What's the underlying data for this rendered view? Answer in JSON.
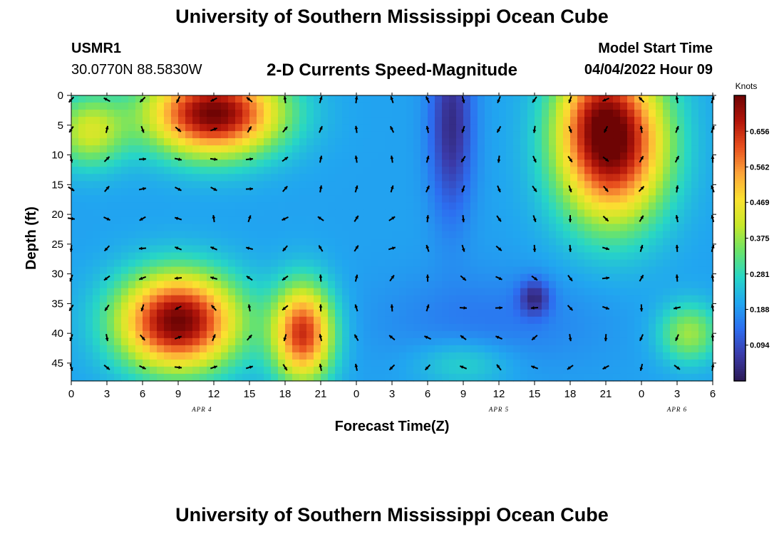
{
  "header": {
    "title": "University of Southern Mississippi Ocean Cube",
    "station_id": "USMR1",
    "coordinates": "30.0770N  88.5830W",
    "plot_title": "2-D Currents Speed-Magnitude",
    "model_start_label": "Model Start Time",
    "model_start_value": "04/04/2022 Hour 09"
  },
  "footer": {
    "title": "University of Southern Mississippi Ocean Cube"
  },
  "chart_data": {
    "type": "heatmap",
    "title": "2-D Currents Speed-Magnitude",
    "xlabel": "Forecast Time(Z)",
    "ylabel": "Depth (ft)",
    "x_ticks": [
      "0",
      "3",
      "6",
      "9",
      "12",
      "15",
      "18",
      "21",
      "0",
      "3",
      "6",
      "9",
      "12",
      "15",
      "18",
      "21",
      "0",
      "3",
      "6"
    ],
    "x_range_hours": [
      0,
      54
    ],
    "date_labels": [
      {
        "label": "APR 4",
        "hour": 11
      },
      {
        "label": "APR 5",
        "hour": 36
      },
      {
        "label": "APR 6",
        "hour": 51
      }
    ],
    "y_ticks": [
      "0",
      "5",
      "10",
      "15",
      "20",
      "25",
      "30",
      "35",
      "40",
      "45"
    ],
    "y_range_ft": [
      0,
      48
    ],
    "colorbar": {
      "title": "Knots",
      "range": [
        0.0,
        0.75
      ],
      "ticks": [
        "0.656",
        "0.562",
        "0.469",
        "0.375",
        "0.281",
        "0.188",
        "0.094"
      ],
      "tick_values": [
        0.656,
        0.562,
        0.469,
        0.375,
        0.281,
        0.188,
        0.094
      ],
      "colors": [
        "#2b1a55",
        "#3b3aa8",
        "#2d6df0",
        "#21a6f0",
        "#27d6c6",
        "#6ae36a",
        "#c7e829",
        "#fbe130",
        "#fca43a",
        "#e8501e",
        "#b3150a",
        "#6e0404"
      ]
    },
    "speed_blobs": [
      {
        "t": 12,
        "d": 3,
        "st": 5.5,
        "sd": 7,
        "amp": 0.55,
        "label": "high-speed region"
      },
      {
        "t": 9,
        "d": 38,
        "st": 5,
        "sd": 8,
        "amp": 0.55,
        "label": "high-speed region"
      },
      {
        "t": 19.5,
        "d": 40,
        "st": 2.5,
        "sd": 8,
        "amp": 0.45,
        "label": "high-speed region"
      },
      {
        "t": 45.5,
        "d": 8,
        "st": 4.5,
        "sd": 13,
        "amp": 0.55,
        "label": "high-speed region"
      },
      {
        "t": 44,
        "d": 2,
        "st": 3,
        "sd": 8,
        "amp": 0.1,
        "label": "high-speed region"
      },
      {
        "t": 1.5,
        "d": 6,
        "st": 3,
        "sd": 6,
        "amp": 0.22,
        "label": "moderate region"
      },
      {
        "t": 52,
        "d": 40,
        "st": 2.5,
        "sd": 5,
        "amp": 0.18,
        "label": "moderate region"
      },
      {
        "t": 33,
        "d": 45,
        "st": 4,
        "sd": 4,
        "amp": 0.08,
        "label": "moderate region"
      }
    ],
    "speed_lows": [
      {
        "t": 32,
        "d": 5,
        "st": 1.8,
        "sd": 15,
        "amp": 0.16
      },
      {
        "t": 39,
        "d": 34,
        "st": 1.3,
        "sd": 3,
        "amp": 0.14
      },
      {
        "t": 35,
        "d": 38,
        "st": 9,
        "sd": 8,
        "amp": 0.05
      }
    ],
    "background_speed": 0.2,
    "vector_times": [
      0,
      3,
      6,
      9,
      12,
      15,
      18,
      21,
      24,
      27,
      30,
      33,
      36,
      39,
      42,
      45,
      48,
      51,
      54
    ],
    "vector_depths": [
      0,
      5,
      10,
      15,
      20,
      25,
      30,
      35,
      40,
      45
    ]
  }
}
